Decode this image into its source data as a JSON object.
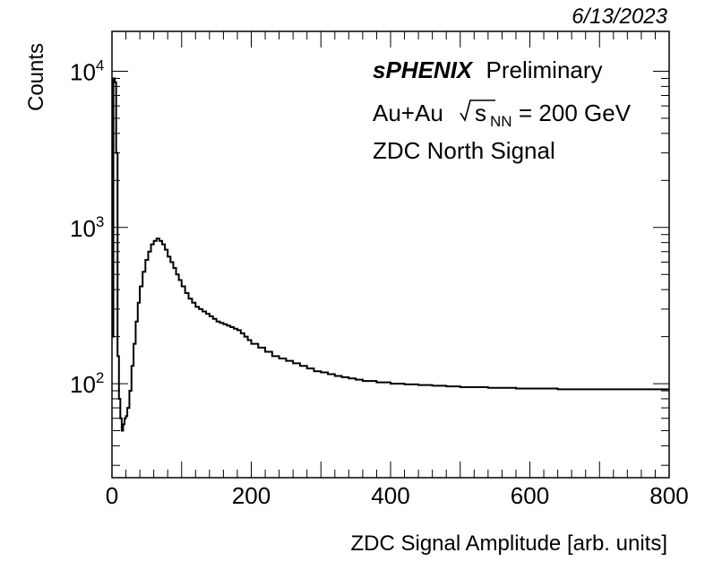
{
  "date": "6/13/2023",
  "chart_data": {
    "type": "line",
    "step": true,
    "xlabel": "ZDC Signal Amplitude [arb. units]",
    "ylabel": "Counts",
    "xlim": [
      0,
      800
    ],
    "ylim": [
      25,
      18000
    ],
    "yscale": "log",
    "x_ticks": [
      0,
      200,
      400,
      600,
      800
    ],
    "x_tick_labels": [
      "0",
      "200",
      "400",
      "600",
      "800"
    ],
    "y_ticks": [
      100,
      1000,
      10000
    ],
    "y_tick_labels": [
      {
        "base": "10",
        "exp": "2"
      },
      {
        "base": "10",
        "exp": "3"
      },
      {
        "base": "10",
        "exp": "4"
      }
    ],
    "annotations": {
      "brand": "sPHENIX",
      "status": "Preliminary",
      "system": "Au+Au",
      "energy_symbol": "s",
      "energy_subscript": "NN",
      "energy_value": "= 200 GeV",
      "signal": "ZDC North Signal"
    },
    "series": [
      {
        "x": [
          0,
          2,
          4,
          6,
          8,
          10,
          12,
          14,
          16,
          18,
          20,
          22,
          25,
          28,
          31,
          34,
          37,
          40,
          44,
          48,
          52,
          56,
          60,
          64,
          68,
          72,
          76,
          80,
          84,
          88,
          92,
          96,
          100,
          105,
          110,
          115,
          120,
          125,
          130,
          135,
          140,
          145,
          150,
          155,
          160,
          165,
          170,
          175,
          180,
          185,
          190,
          195,
          200,
          210,
          220,
          230,
          240,
          250,
          260,
          270,
          280,
          290,
          300,
          310,
          320,
          330,
          340,
          350,
          360,
          380,
          400,
          420,
          440,
          460,
          480,
          500,
          520,
          540,
          560,
          580,
          600,
          620,
          640,
          660,
          680,
          700,
          720,
          740,
          760,
          780,
          800
        ],
        "y": [
          200,
          9000,
          8500,
          3000,
          150,
          80,
          60,
          50,
          55,
          60,
          62,
          70,
          90,
          130,
          180,
          250,
          330,
          420,
          520,
          620,
          700,
          780,
          820,
          850,
          820,
          780,
          720,
          650,
          600,
          550,
          500,
          460,
          420,
          380,
          350,
          330,
          310,
          300,
          290,
          280,
          270,
          260,
          250,
          245,
          240,
          235,
          230,
          225,
          220,
          210,
          200,
          190,
          180,
          170,
          160,
          150,
          145,
          140,
          135,
          130,
          125,
          120,
          118,
          115,
          112,
          110,
          108,
          106,
          104,
          102,
          100,
          99,
          98,
          97,
          96,
          95,
          95,
          94,
          94,
          93,
          93,
          93,
          92,
          92,
          92,
          92,
          92,
          92,
          92,
          92,
          92
        ]
      }
    ]
  }
}
